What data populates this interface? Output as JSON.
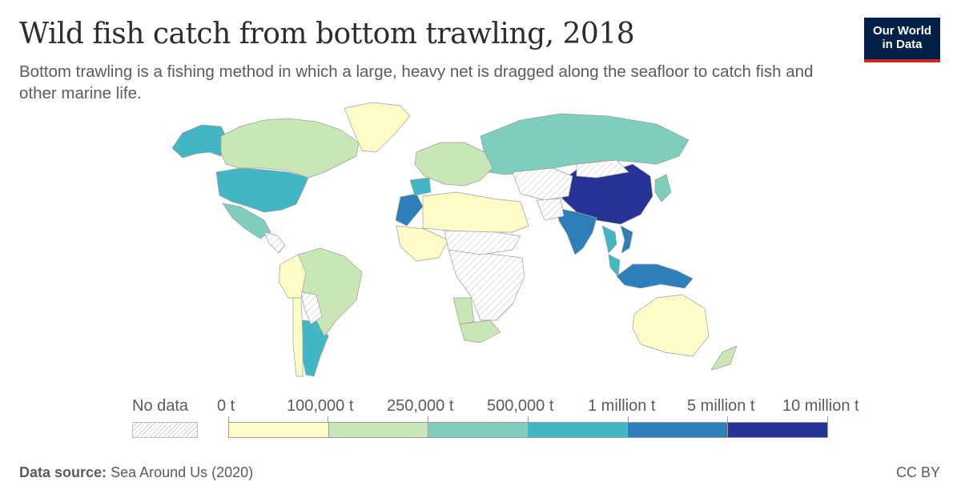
{
  "header": {
    "title": "Wild fish catch from bottom trawling, 2018",
    "subtitle": "Bottom trawling is a fishing method in which a large, heavy net is dragged along the seafloor to catch fish and other marine life.",
    "logo_line1": "Our World",
    "logo_line2": "in Data"
  },
  "legend": {
    "no_data_label": "No data",
    "labels": [
      "0 t",
      "100,000 t",
      "250,000 t",
      "500,000 t",
      "1 million t",
      "5 million t",
      "10 million t"
    ],
    "colors": [
      "#fefcc6",
      "#c9e7b6",
      "#7fcebd",
      "#41b6c4",
      "#2c7fb8",
      "#253494"
    ]
  },
  "map": {
    "ocean_color": "#ffffff",
    "border_color": "#9e9e9e",
    "no_data_fill": "hatched-grey",
    "regions": [
      {
        "name": "China",
        "bin": 5
      },
      {
        "name": "India",
        "bin": 4
      },
      {
        "name": "Indonesia",
        "bin": 4
      },
      {
        "name": "Vietnam",
        "bin": 4
      },
      {
        "name": "Morocco",
        "bin": 4
      },
      {
        "name": "United States",
        "bin": 3
      },
      {
        "name": "Alaska (United States)",
        "bin": 3
      },
      {
        "name": "Thailand",
        "bin": 3
      },
      {
        "name": "Malaysia",
        "bin": 3
      },
      {
        "name": "Argentina",
        "bin": 3
      },
      {
        "name": "Spain",
        "bin": 3
      },
      {
        "name": "Russia",
        "bin": 2
      },
      {
        "name": "Mexico",
        "bin": 2
      },
      {
        "name": "Japan",
        "bin": 2
      },
      {
        "name": "Canada",
        "bin": 1
      },
      {
        "name": "Brazil",
        "bin": 1
      },
      {
        "name": "South Africa",
        "bin": 1
      },
      {
        "name": "Namibia",
        "bin": 1
      },
      {
        "name": "New Zealand",
        "bin": 1
      },
      {
        "name": "Europe (most)",
        "bin": 1
      },
      {
        "name": "Greenland",
        "bin": 0
      },
      {
        "name": "Australia",
        "bin": 0
      },
      {
        "name": "West Africa",
        "bin": 0
      },
      {
        "name": "North Africa",
        "bin": 0
      },
      {
        "name": "Peru",
        "bin": 0
      },
      {
        "name": "Chile",
        "bin": 0
      },
      {
        "name": "Kazakhstan / Central Asia",
        "bin": -1
      },
      {
        "name": "Central Africa",
        "bin": -1
      },
      {
        "name": "Sahel",
        "bin": -1
      },
      {
        "name": "Bolivia / Paraguay",
        "bin": -1
      },
      {
        "name": "Central America",
        "bin": -1
      },
      {
        "name": "Afghanistan",
        "bin": -1
      },
      {
        "name": "Mongolia",
        "bin": -1
      }
    ]
  },
  "footer": {
    "source_label": "Data source:",
    "source_text": "Sea Around Us (2020)",
    "license": "CC BY"
  }
}
